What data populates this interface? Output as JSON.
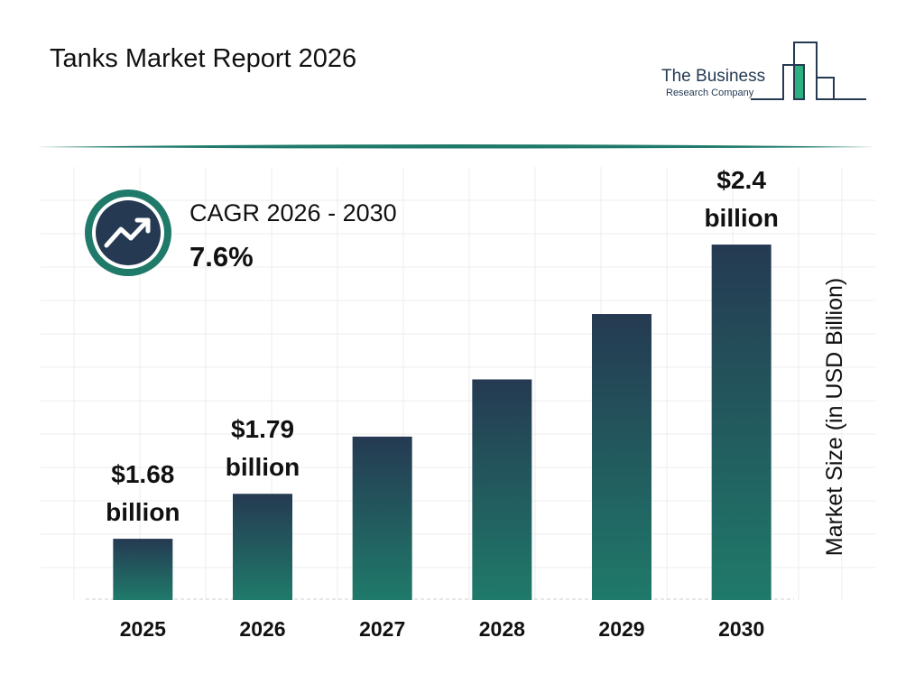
{
  "chart_data": {
    "type": "bar",
    "title": "Tanks Market Report 2026",
    "brand": [
      "The Business",
      "Research Company"
    ],
    "cagr": {
      "label": "CAGR 2026 - 2030",
      "value": "7.6%"
    },
    "y_label": "Market Size (in USD Billion)",
    "categories": [
      "2025",
      "2026",
      "2027",
      "2028",
      "2029",
      "2030"
    ],
    "values": [
      1.68,
      1.79,
      1.93,
      2.07,
      2.23,
      2.4
    ],
    "value_labels": [
      "$1.68 billion",
      "$1.79 billion",
      null,
      null,
      null,
      "$2.4 billion"
    ],
    "color": [
      "#253a52",
      "#1f7a6a"
    ],
    "ylim": [
      1.53,
      2.59
    ]
  }
}
